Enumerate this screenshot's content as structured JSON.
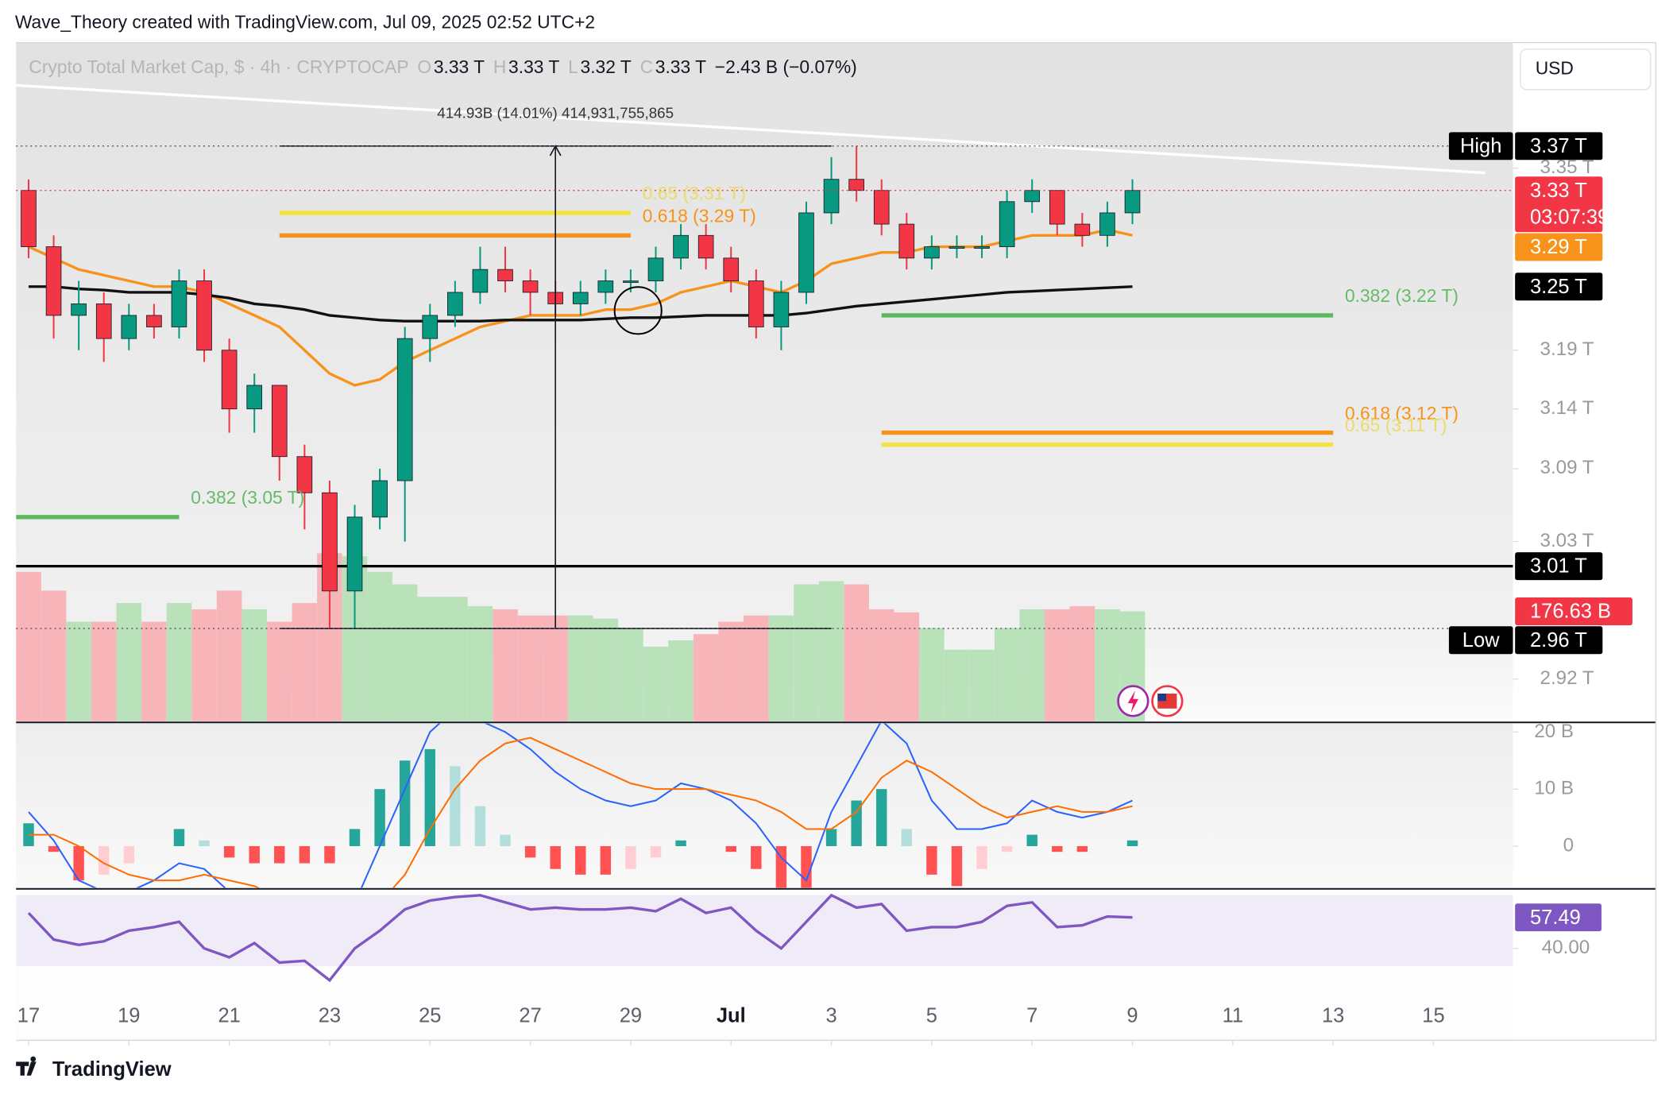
{
  "header": {
    "attribution": "Wave_Theory created with TradingView.com, Jul 09, 2025 02:52 UTC+2"
  },
  "chart_data": {
    "type": "candlestick",
    "title": "Crypto Total Market Cap, $ · 4h · CRYPTOCAP",
    "ohlc_legend": [
      {
        "key": "O",
        "value": "3.33 T"
      },
      {
        "key": "H",
        "value": "3.33 T"
      },
      {
        "key": "L",
        "value": "3.32 T"
      },
      {
        "key": "C",
        "value": "3.33 T"
      }
    ],
    "change": "−2.43 B (−0.07%)",
    "currency": "USD",
    "x": [
      "2025-06-17T00:00",
      "2025-06-17T12:00",
      "2025-06-18T00:00",
      "2025-06-18T12:00",
      "2025-06-19T00:00",
      "2025-06-19T12:00",
      "2025-06-20T00:00",
      "2025-06-20T12:00",
      "2025-06-21T00:00",
      "2025-06-21T12:00",
      "2025-06-22T00:00",
      "2025-06-22T12:00",
      "2025-06-23T00:00",
      "2025-06-23T12:00",
      "2025-06-24T00:00",
      "2025-06-24T12:00",
      "2025-06-25T00:00",
      "2025-06-25T12:00",
      "2025-06-26T00:00",
      "2025-06-26T12:00",
      "2025-06-27T00:00",
      "2025-06-27T12:00",
      "2025-06-28T00:00",
      "2025-06-28T12:00",
      "2025-06-29T00:00",
      "2025-06-29T12:00",
      "2025-06-30T00:00",
      "2025-06-30T12:00",
      "2025-07-01T00:00",
      "2025-07-01T12:00",
      "2025-07-02T00:00",
      "2025-07-02T12:00",
      "2025-07-03T00:00",
      "2025-07-03T12:00",
      "2025-07-04T00:00",
      "2025-07-04T12:00",
      "2025-07-05T00:00",
      "2025-07-05T12:00",
      "2025-07-06T00:00",
      "2025-07-06T12:00",
      "2025-07-07T00:00",
      "2025-07-07T12:00",
      "2025-07-08T00:00",
      "2025-07-08T12:00",
      "2025-07-09T00:00"
    ],
    "open": [
      3.33,
      3.28,
      3.22,
      3.23,
      3.2,
      3.22,
      3.21,
      3.25,
      3.19,
      3.14,
      3.16,
      3.1,
      3.07,
      2.99,
      3.05,
      3.08,
      3.2,
      3.22,
      3.24,
      3.26,
      3.25,
      3.24,
      3.23,
      3.24,
      3.25,
      3.25,
      3.27,
      3.29,
      3.27,
      3.25,
      3.21,
      3.24,
      3.31,
      3.34,
      3.33,
      3.3,
      3.27,
      3.28,
      3.28,
      3.28,
      3.32,
      3.33,
      3.3,
      3.29,
      3.31
    ],
    "high": [
      3.34,
      3.29,
      3.25,
      3.24,
      3.23,
      3.23,
      3.26,
      3.26,
      3.2,
      3.17,
      3.16,
      3.11,
      3.08,
      3.06,
      3.09,
      3.21,
      3.23,
      3.25,
      3.28,
      3.28,
      3.26,
      3.25,
      3.25,
      3.26,
      3.26,
      3.28,
      3.3,
      3.3,
      3.28,
      3.26,
      3.25,
      3.32,
      3.36,
      3.37,
      3.34,
      3.31,
      3.29,
      3.29,
      3.29,
      3.33,
      3.34,
      3.33,
      3.31,
      3.32,
      3.34
    ],
    "low": [
      3.27,
      3.2,
      3.19,
      3.18,
      3.19,
      3.2,
      3.2,
      3.18,
      3.12,
      3.12,
      3.08,
      3.04,
      2.96,
      2.96,
      3.04,
      3.03,
      3.18,
      3.21,
      3.23,
      3.24,
      3.22,
      3.22,
      3.22,
      3.23,
      3.24,
      3.24,
      3.26,
      3.26,
      3.24,
      3.2,
      3.19,
      3.23,
      3.3,
      3.32,
      3.29,
      3.26,
      3.26,
      3.27,
      3.27,
      3.27,
      3.31,
      3.29,
      3.28,
      3.28,
      3.3
    ],
    "close": [
      3.28,
      3.22,
      3.23,
      3.2,
      3.22,
      3.21,
      3.25,
      3.19,
      3.14,
      3.16,
      3.1,
      3.07,
      2.99,
      3.05,
      3.08,
      3.2,
      3.22,
      3.24,
      3.26,
      3.25,
      3.24,
      3.23,
      3.24,
      3.25,
      3.25,
      3.27,
      3.29,
      3.27,
      3.25,
      3.21,
      3.24,
      3.31,
      3.34,
      3.33,
      3.3,
      3.27,
      3.28,
      3.28,
      3.28,
      3.32,
      3.33,
      3.3,
      3.29,
      3.31,
      3.33
    ],
    "up_color": "#089981",
    "down_color": "#f23645",
    "log": true,
    "ylim": [
      2.887,
      3.465
    ],
    "yticks": [
      {
        "value": 2.92,
        "label": "2.92 T"
      },
      {
        "value": 3.03,
        "label": "3.03 T"
      },
      {
        "value": 3.09,
        "label": "3.09 T"
      },
      {
        "value": 3.14,
        "label": "3.14 T"
      },
      {
        "value": 3.19,
        "label": "3.19 T"
      },
      {
        "value": 3.35,
        "label": "3.35 T"
      }
    ],
    "xlim": [
      "2025-06-16T18:00",
      "2025-07-16T14:00"
    ],
    "xticks": [
      {
        "value": "2025-06-17T00:00",
        "label": "17"
      },
      {
        "value": "2025-06-19T00:00",
        "label": "19"
      },
      {
        "value": "2025-06-21T00:00",
        "label": "21"
      },
      {
        "value": "2025-06-23T00:00",
        "label": "23"
      },
      {
        "value": "2025-06-25T00:00",
        "label": "25"
      },
      {
        "value": "2025-06-27T00:00",
        "label": "27"
      },
      {
        "value": "2025-06-29T00:00",
        "label": "29"
      },
      {
        "value": "2025-07-01T00:00",
        "label": "Jul"
      },
      {
        "value": "2025-07-03T00:00",
        "label": "3"
      },
      {
        "value": "2025-07-05T00:00",
        "label": "5"
      },
      {
        "value": "2025-07-07T00:00",
        "label": "7"
      },
      {
        "value": "2025-07-09T00:00",
        "label": "9"
      },
      {
        "value": "2025-07-11T00:00",
        "label": "11"
      },
      {
        "value": "2025-07-13T00:00",
        "label": "13"
      },
      {
        "value": "2025-07-15T00:00",
        "label": "15"
      }
    ],
    "lines": [
      {
        "color": "#f7931a",
        "values": [
          3.28,
          3.27,
          3.26,
          3.255,
          3.25,
          3.245,
          3.245,
          3.24,
          3.23,
          3.22,
          3.21,
          3.19,
          3.17,
          3.16,
          3.165,
          3.18,
          3.19,
          3.2,
          3.21,
          3.215,
          3.22,
          3.22,
          3.22,
          3.225,
          3.225,
          3.23,
          3.24,
          3.245,
          3.25,
          3.245,
          3.24,
          3.25,
          3.265,
          3.27,
          3.275,
          3.275,
          3.28,
          3.28,
          3.28,
          3.285,
          3.29,
          3.29,
          3.29,
          3.295,
          3.29
        ]
      },
      {
        "color": "#111111",
        "values": [
          3.245,
          3.245,
          3.243,
          3.242,
          3.24,
          3.24,
          3.24,
          3.238,
          3.235,
          3.23,
          3.228,
          3.225,
          3.22,
          3.218,
          3.216,
          3.215,
          3.215,
          3.215,
          3.215,
          3.216,
          3.216,
          3.216,
          3.216,
          3.217,
          3.218,
          3.218,
          3.219,
          3.22,
          3.22,
          3.22,
          3.22,
          3.222,
          3.225,
          3.228,
          3.23,
          3.232,
          3.234,
          3.236,
          3.238,
          3.24,
          3.241,
          3.242,
          3.243,
          3.244,
          3.245
        ]
      }
    ],
    "levels": [
      {
        "label": "0.65 (3.31 T)",
        "value": 3.31,
        "color": "#f5e23a",
        "label_color": "#eadb6a",
        "x_range": [
          "2025-06-22T00:00",
          "2025-06-29T00:00"
        ]
      },
      {
        "label": "0.618 (3.29 T)",
        "value": 3.29,
        "color": "#f7931a",
        "label_color": "#f7931a",
        "x_range": [
          "2025-06-22T00:00",
          "2025-06-29T00:00"
        ]
      },
      {
        "label": "0.382 (3.05 T)",
        "value": 3.05,
        "color": "#5cb85c",
        "label_color": "#66bb6a",
        "x_range": [
          "2025-06-16T18:00",
          "2025-06-20T00:00"
        ]
      },
      {
        "label": "0.382 (3.22 T)",
        "value": 3.22,
        "color": "#5cb85c",
        "label_color": "#66bb6a",
        "x_range": [
          "2025-07-04T00:00",
          "2025-07-13T00:00"
        ]
      },
      {
        "label": "0.618 (3.12 T)",
        "value": 3.12,
        "color": "#f7931a",
        "label_color": "#f7931a",
        "x_range": [
          "2025-07-04T00:00",
          "2025-07-13T00:00"
        ]
      },
      {
        "label": "0.65 (3.11 T)",
        "value": 3.11,
        "color": "#f5e23a",
        "label_color": "#eadb6a",
        "x_range": [
          "2025-07-04T00:00",
          "2025-07-13T00:00"
        ]
      },
      {
        "value": 3.01,
        "color": "#000000",
        "x_range": [
          "2025-06-16T18:00",
          "2025-07-16T14:00"
        ]
      }
    ],
    "measure": {
      "label": "414.93B (14.01%) 414,931,755,865",
      "from": 2.96,
      "to": 3.37,
      "x": "2025-06-27T12:00",
      "x_range": [
        "2025-06-22T00:00",
        "2025-07-03T00:00"
      ]
    },
    "badges": [
      {
        "tag": "High",
        "label": "3.37 T",
        "value": 3.37,
        "color": "#000000",
        "dotted": true
      },
      {
        "label": "3.33 T",
        "value": 3.33,
        "countdown": "03:07:39",
        "color": "#f23645",
        "dotted": true
      },
      {
        "label": "3.29 T",
        "value": 3.29,
        "color": "#f7931a"
      },
      {
        "label": "3.25 T",
        "value": 3.245,
        "color": "#000000"
      },
      {
        "label": "3.01 T",
        "value": 3.01,
        "color": "#000000"
      },
      {
        "label": "176.63 B",
        "value": 176.63,
        "color": "#f23645",
        "axis": "volume"
      },
      {
        "tag": "Low",
        "label": "2.96 T",
        "value": 2.96,
        "color": "#000000",
        "dotted": true
      }
    ],
    "volume": {
      "vlim": [
        0,
        1090
      ],
      "up_color": "#b9e2ba",
      "down_color": "#f7b5b9",
      "values": [
        240,
        210,
        160,
        160,
        190,
        160,
        190,
        180,
        210,
        180,
        160,
        190,
        270,
        265,
        240,
        220,
        200,
        200,
        185,
        180,
        170,
        170,
        170,
        165,
        150,
        120,
        130,
        140,
        160,
        170,
        170,
        220,
        225,
        220,
        180,
        175,
        150,
        115,
        115,
        150,
        180,
        180,
        185,
        180,
        176.63
      ]
    },
    "macd": {
      "ylim": [
        -7.3,
        21.5
      ],
      "yticks": [
        {
          "value": 0,
          "label": "0"
        },
        {
          "value": 10,
          "label": "10 B"
        },
        {
          "value": 20,
          "label": "20 B"
        }
      ],
      "macd_color": "#2962ff",
      "signal_color": "#ff6d00",
      "hist_colors": [
        "#26a69a",
        "#b2dfdb",
        "#ff5252",
        "#ffcdd2"
      ],
      "macd": [
        6,
        1,
        -6,
        -8,
        -8,
        -6,
        -3,
        -4,
        -8,
        -10,
        -12,
        -14,
        -16,
        -10,
        0,
        10,
        20,
        24,
        22,
        20,
        17,
        13,
        10,
        8,
        7,
        8,
        11,
        10,
        8,
        4,
        -2,
        -6,
        6,
        14,
        22,
        18,
        8,
        3,
        3,
        4,
        8,
        6,
        5,
        6,
        8
      ],
      "signal": [
        2,
        2,
        0,
        -3,
        -5,
        -6,
        -6,
        -5,
        -6,
        -7,
        -9,
        -11,
        -13,
        -13,
        -10,
        -5,
        3,
        10,
        15,
        18,
        19,
        17,
        15,
        13,
        11,
        10,
        10,
        10,
        9,
        8,
        6,
        3,
        3,
        6,
        12,
        15,
        13,
        10,
        7,
        5,
        6,
        7,
        6,
        6,
        7
      ],
      "histogram": [
        4,
        -1,
        -6,
        -5,
        -3,
        0,
        3,
        1,
        -2,
        -3,
        -3,
        -3,
        -3,
        3,
        10,
        15,
        17,
        14,
        7,
        2,
        -2,
        -4,
        -5,
        -5,
        -4,
        -2,
        1,
        0,
        -1,
        -4,
        -8,
        -9,
        3,
        8,
        10,
        3,
        -5,
        -7,
        -4,
        -1,
        2,
        -1,
        -1,
        0,
        1
      ]
    },
    "rsi": {
      "ylim": [
        14,
        73
      ],
      "yticks": [
        {
          "value": 40,
          "label": "40.00"
        }
      ],
      "band": [
        30,
        70
      ],
      "color": "#7e57c2",
      "values": [
        60,
        45,
        42,
        44,
        50,
        52,
        55,
        40,
        35,
        43,
        32,
        33,
        22,
        40,
        50,
        62,
        67,
        69,
        70,
        66,
        62,
        63,
        62,
        62,
        63,
        61,
        68,
        60,
        63,
        50,
        40,
        55,
        70,
        63,
        65,
        50,
        52,
        52,
        55,
        64,
        66,
        52,
        53,
        58,
        57.49
      ]
    }
  },
  "footer": {
    "brand": "TradingView"
  }
}
